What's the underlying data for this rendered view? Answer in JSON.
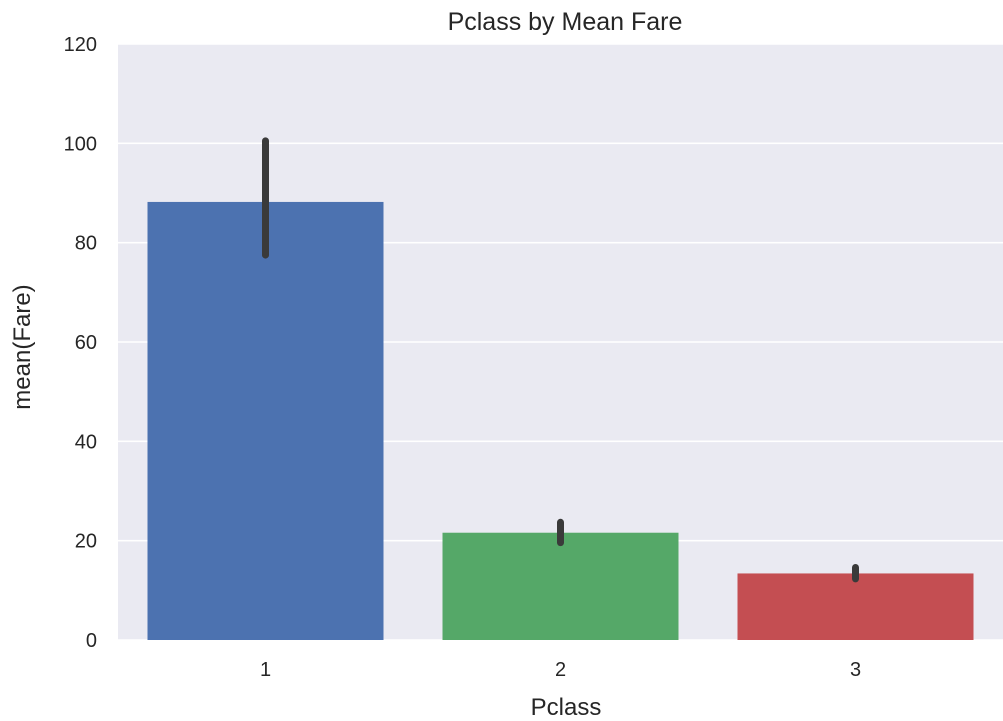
{
  "chart_data": {
    "type": "bar",
    "title": "Pclass by Mean Fare",
    "xlabel": "Pclass",
    "ylabel": "mean(Fare)",
    "categories": [
      "1",
      "2",
      "3"
    ],
    "values": [
      88.2,
      21.6,
      13.4
    ],
    "error_bars": [
      {
        "low": 77.5,
        "high": 100.5
      },
      {
        "low": 19.6,
        "high": 23.7
      },
      {
        "low": 12.3,
        "high": 14.6
      }
    ],
    "ylim": [
      0,
      120
    ],
    "yticks": [
      0,
      20,
      40,
      60,
      80,
      100,
      120
    ],
    "grid": true,
    "colors": {
      "background": "#EAEAF2",
      "grid": "#FFFFFF",
      "bars": [
        "#4C72B0",
        "#55A868",
        "#C44E52"
      ],
      "errorbar": "#3A3A3A"
    }
  }
}
